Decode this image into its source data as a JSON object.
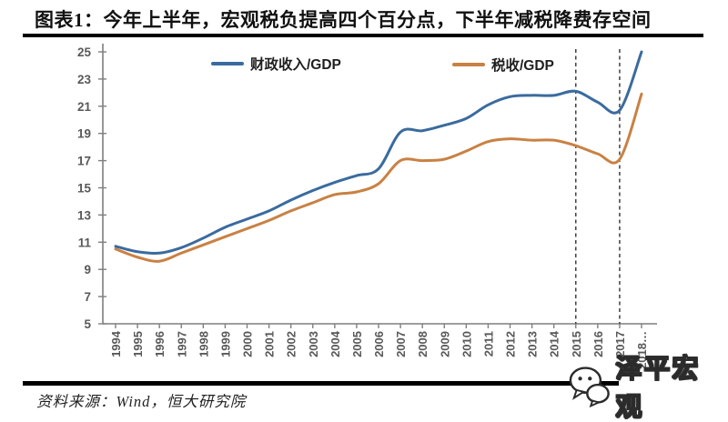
{
  "title": "图表1：今年上半年，宏观税负提高四个百分点，下半年减税降费存空间",
  "footer": {
    "source_label": "资料来源：Wind，恒大研究院"
  },
  "watermark": {
    "name": "泽平宏观",
    "icon": "chat-bubbles-icon"
  },
  "colors": {
    "fiscal_line": "#3a6b9e",
    "tax_line": "#c98143",
    "axis": "#7f7f7f",
    "tick_label": "#595959",
    "dashed_line": "#3f3f3f",
    "rule": "#000000"
  },
  "chart_data": {
    "type": "line",
    "title": "",
    "xlabel": "",
    "ylabel": "",
    "x": [
      1994,
      1995,
      1996,
      1997,
      1998,
      1999,
      2000,
      2001,
      2002,
      2003,
      2004,
      2005,
      2006,
      2007,
      2008,
      2009,
      2010,
      2011,
      2012,
      2013,
      2014,
      2015,
      2016,
      2017,
      2018
    ],
    "x_tick_labels": [
      "1994",
      "1995",
      "1996",
      "1997",
      "1998",
      "1999",
      "2000",
      "2001",
      "2002",
      "2003",
      "2004",
      "2005",
      "2006",
      "2007",
      "2008",
      "2009",
      "2010",
      "2011",
      "2012",
      "2013",
      "2014",
      "2015",
      "2016",
      "2017",
      "2018…"
    ],
    "series": [
      {
        "name": "财政收入/GDP",
        "color": "#3a6b9e",
        "values": [
          10.7,
          10.3,
          10.2,
          10.6,
          11.3,
          12.1,
          12.7,
          13.3,
          14.1,
          14.8,
          15.4,
          15.9,
          16.4,
          19.1,
          19.2,
          19.6,
          20.1,
          21.1,
          21.7,
          21.8,
          21.8,
          22.1,
          21.3,
          20.7,
          25.0
        ]
      },
      {
        "name": "税收/GDP",
        "color": "#c98143",
        "values": [
          10.5,
          9.9,
          9.6,
          10.2,
          10.8,
          11.4,
          12.0,
          12.6,
          13.3,
          13.9,
          14.5,
          14.7,
          15.3,
          17.0,
          17.0,
          17.1,
          17.7,
          18.4,
          18.6,
          18.5,
          18.5,
          18.1,
          17.5,
          17.1,
          21.9
        ]
      }
    ],
    "ylim": [
      5,
      25
    ],
    "y_ticks": [
      5,
      7,
      9,
      11,
      13,
      15,
      17,
      19,
      21,
      23,
      25
    ],
    "dashed_vlines_x": [
      2015,
      2017
    ],
    "legend_position": "top-inside",
    "grid": false
  }
}
